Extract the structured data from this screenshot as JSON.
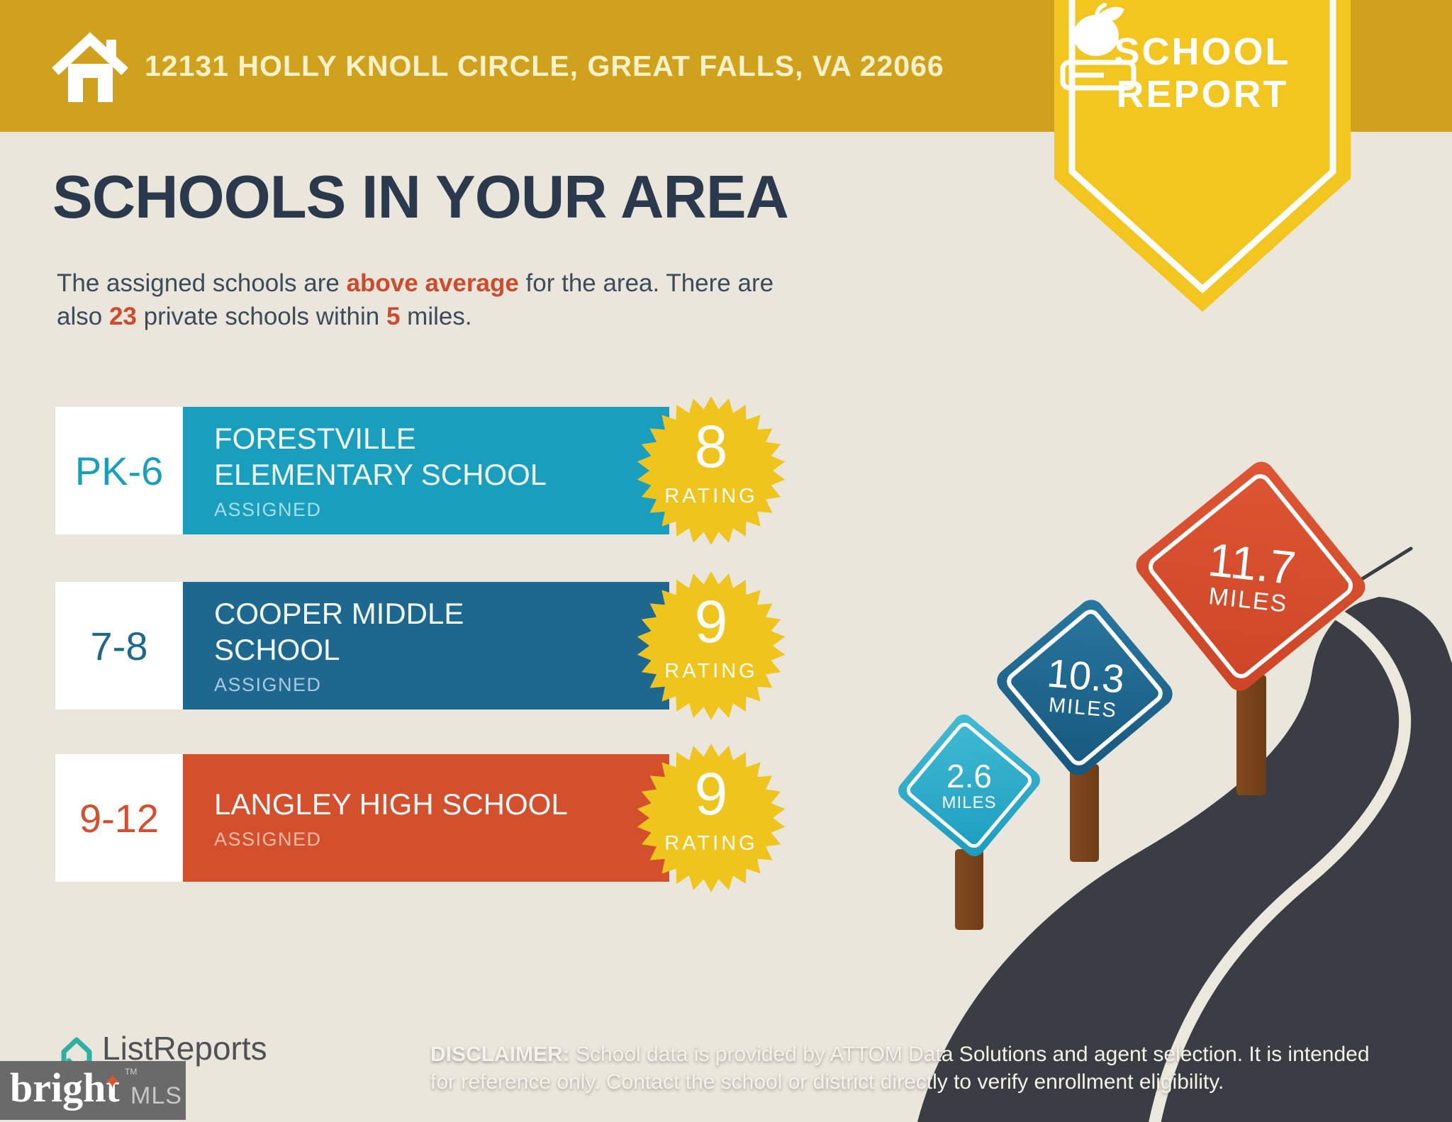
{
  "header": {
    "address": "12131 HOLLY KNOLL CIRCLE, GREAT FALLS, VA 22066",
    "badge": {
      "line1": "SCHOOL",
      "line2": "REPORT"
    }
  },
  "main": {
    "title": "SCHOOLS IN YOUR AREA",
    "subtitle": {
      "line1_pre": "The assigned schools are ",
      "line1_highlight": "above average",
      "line1_post": " for the area. There are",
      "line2_pre": "also ",
      "line2_count": "23",
      "line2_mid": " private schools within ",
      "line2_radius": "5",
      "line2_post": " miles."
    }
  },
  "schools": [
    {
      "grades": "PK-6",
      "name_line1": "FORESTVILLE",
      "name_line2": "ELEMENTARY SCHOOL",
      "status": "ASSIGNED",
      "rating": "8",
      "rating_label": "RATING",
      "color": "#199fbd"
    },
    {
      "grades": "7-8",
      "name_line1": "COOPER MIDDLE",
      "name_line2": "SCHOOL",
      "status": "ASSIGNED",
      "rating": "9",
      "rating_label": "RATING",
      "color": "#1e6890"
    },
    {
      "grades": "9-12",
      "name_line1": "LANGLEY HIGH SCHOOL",
      "name_line2": "",
      "status": "ASSIGNED",
      "rating": "9",
      "rating_label": "RATING",
      "color": "#d4502c"
    }
  ],
  "signs": [
    {
      "distance": "2.6",
      "unit": "MILES",
      "color": "#2fadca"
    },
    {
      "distance": "10.3",
      "unit": "MILES",
      "color": "#1e6890"
    },
    {
      "distance": "11.7",
      "unit": "MILES",
      "color": "#d94f2b"
    }
  ],
  "footer": {
    "brand": "ListReports",
    "disclaimer_label": "DISCLAIMER:",
    "disclaimer_line1": " School data is provided by ATTOM Data Solutions and agent selection. It is intended",
    "disclaimer_line2": "for reference only. Contact the school or district directly to verify enrollment eligibility.",
    "bright": "bright",
    "mls": "MLS",
    "tm": "TM"
  },
  "colors": {
    "header_gold": "#d0a11c",
    "badge_yellow": "#f2c61e",
    "background": "#eae6dc",
    "title_navy": "#2a3a4c",
    "accent_red": "#ce4a2d",
    "elementary_teal": "#199fbd",
    "middle_blue": "#1e6890",
    "high_red": "#d4502c",
    "rating_starburst_yellow": "#efc51d",
    "road_dark": "#3a3e44",
    "post_brown": "#7a431c",
    "listreports_teal": "#2faea4"
  }
}
